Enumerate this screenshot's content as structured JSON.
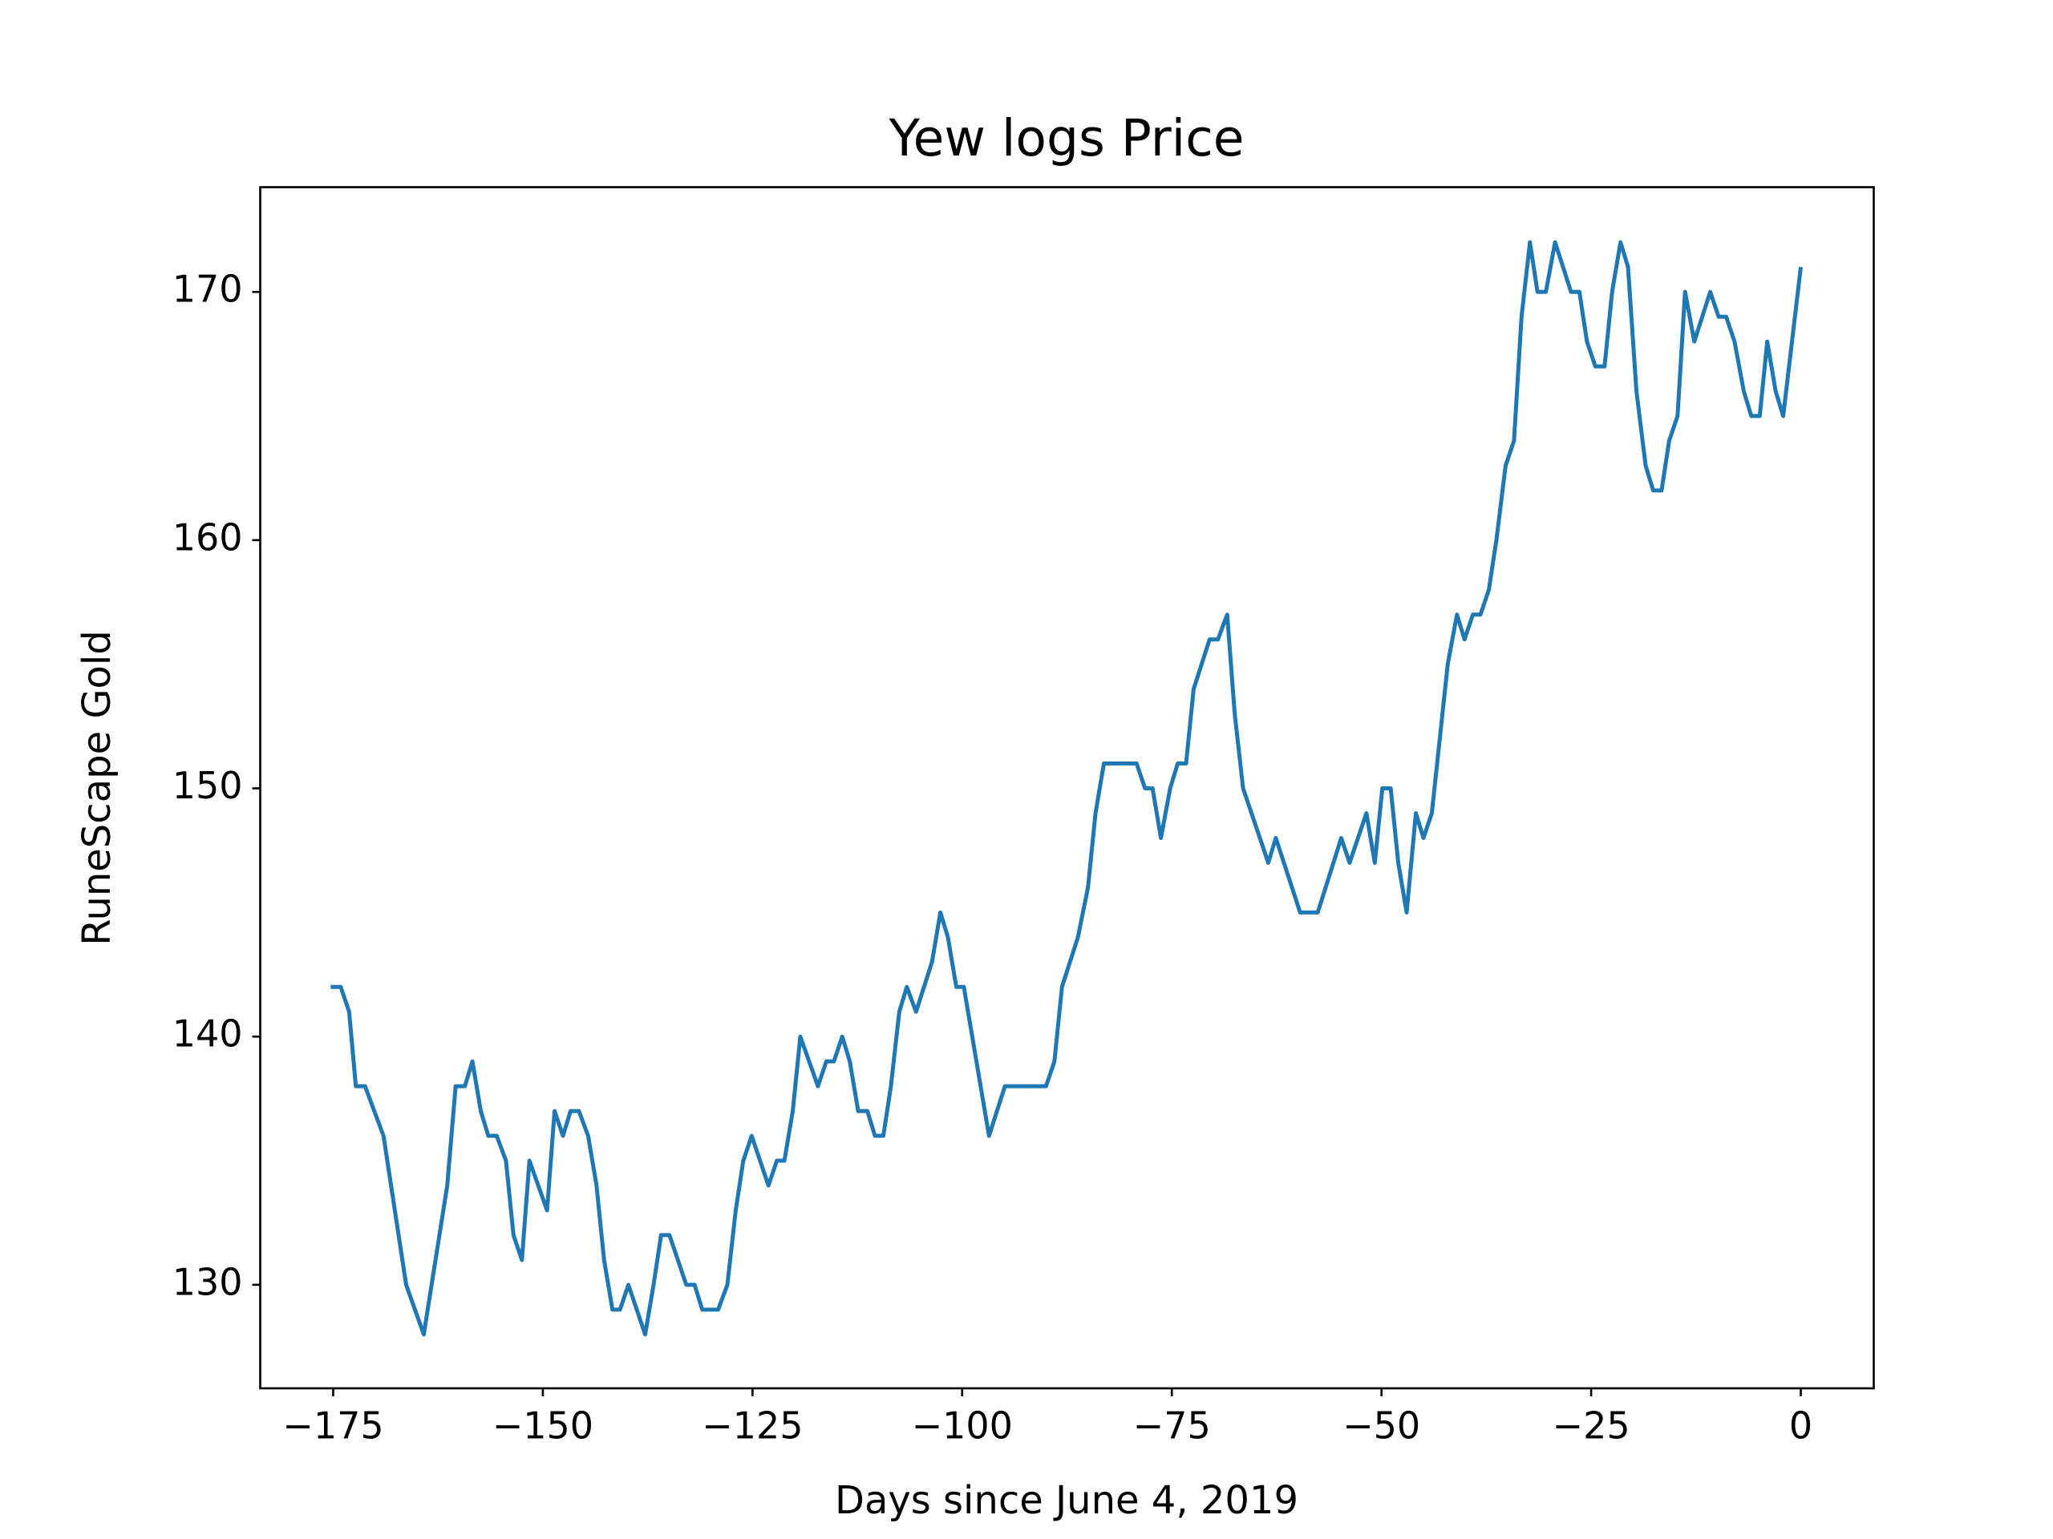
{
  "chart_data": {
    "type": "line",
    "title": "Yew logs Price",
    "x_label": "Days since June 4, 2019",
    "y_label": "RuneScape Gold",
    "xlim": [
      -183.7,
      8.7
    ],
    "ylim": [
      125.83,
      174.22
    ],
    "xticks": [
      {
        "value": -175,
        "label": "−175"
      },
      {
        "value": -150,
        "label": "−150"
      },
      {
        "value": -125,
        "label": "−125"
      },
      {
        "value": -100,
        "label": "−100"
      },
      {
        "value": -75,
        "label": "−75"
      },
      {
        "value": -50,
        "label": "−50"
      },
      {
        "value": -25,
        "label": "−25"
      },
      0
    ],
    "yticks": [
      130,
      140,
      150,
      160,
      170
    ],
    "series": [
      {
        "name": "Yew logs",
        "color": "#1f77b4",
        "x": [
          -175.3,
          -174.1,
          -173.1,
          -172.3,
          -171.2,
          -169.0,
          -166.3,
          -164.2,
          -161.4,
          -160.4,
          -159.3,
          -158.4,
          -157.4,
          -156.5,
          -155.5,
          -154.4,
          -153.5,
          -152.5,
          -151.6,
          -149.5,
          -148.6,
          -147.6,
          -146.7,
          -145.7,
          -144.6,
          -143.6,
          -142.7,
          -141.7,
          -140.8,
          -139.8,
          -137.8,
          -136.8,
          -135.9,
          -134.9,
          -132.9,
          -131.9,
          -131.0,
          -129.1,
          -128.0,
          -127.0,
          -126.1,
          -125.1,
          -123.1,
          -122.1,
          -121.2,
          -120.2,
          -119.3,
          -117.2,
          -116.2,
          -115.3,
          -114.3,
          -113.4,
          -112.4,
          -111.3,
          -110.4,
          -109.4,
          -108.5,
          -107.5,
          -106.6,
          -105.5,
          -103.6,
          -102.6,
          -101.7,
          -100.7,
          -99.8,
          -96.8,
          -94.9,
          -90.0,
          -89.0,
          -88.1,
          -86.2,
          -85.0,
          -84.1,
          -83.1,
          -79.2,
          -78.2,
          -77.3,
          -76.3,
          -75.2,
          -74.3,
          -73.3,
          -72.4,
          -70.5,
          -69.5,
          -68.4,
          -67.5,
          -66.5,
          -63.5,
          -62.6,
          -59.7,
          -57.6,
          -54.8,
          -53.8,
          -51.8,
          -50.8,
          -49.9,
          -48.9,
          -48.0,
          -47.0,
          -45.9,
          -45.0,
          -44.0,
          -42.1,
          -41.0,
          -40.1,
          -39.1,
          -38.2,
          -37.2,
          -36.3,
          -35.2,
          -34.2,
          -33.3,
          -32.3,
          -31.4,
          -30.4,
          -29.3,
          -27.4,
          -26.4,
          -25.5,
          -24.5,
          -23.4,
          -22.5,
          -21.5,
          -20.6,
          -19.6,
          -18.5,
          -17.6,
          -16.6,
          -15.7,
          -14.7,
          -13.8,
          -12.7,
          -10.8,
          -9.8,
          -8.9,
          -7.9,
          -6.8,
          -5.9,
          -4.9,
          -4.0,
          -3.0,
          -2.1,
          0
        ],
        "values": [
          142,
          142,
          141,
          138,
          138,
          136,
          130,
          128,
          134,
          138,
          138,
          139,
          137,
          136,
          136,
          135,
          132,
          131,
          135,
          133,
          137,
          136,
          137,
          137,
          136,
          134,
          131,
          129,
          129,
          130,
          128,
          130,
          132,
          132,
          130,
          130,
          129,
          129,
          130,
          133,
          135,
          136,
          134,
          135,
          135,
          137,
          140,
          138,
          139,
          139,
          140,
          139,
          137,
          137,
          136,
          136,
          138,
          141,
          142,
          141,
          143,
          145,
          144,
          142,
          142,
          136,
          138,
          138,
          139,
          142,
          144,
          146,
          149,
          151,
          151,
          150,
          150,
          148,
          150,
          151,
          151,
          154,
          156,
          156,
          157,
          153,
          150,
          147,
          148,
          145,
          145,
          148,
          147,
          149,
          147,
          150,
          150,
          147,
          145,
          149,
          148,
          149,
          155,
          157,
          156,
          157,
          157,
          158,
          160,
          163,
          164,
          169,
          172,
          170,
          170,
          172,
          170,
          170,
          168,
          167,
          167,
          170,
          172,
          171,
          166,
          163,
          162,
          162,
          164,
          165,
          170,
          168,
          170,
          169,
          169,
          168,
          166,
          165,
          165,
          168,
          166,
          165,
          171
        ]
      }
    ]
  }
}
